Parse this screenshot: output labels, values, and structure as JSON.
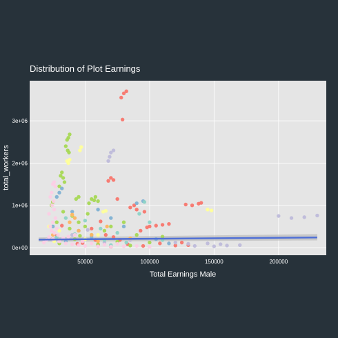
{
  "chart_data": {
    "type": "scatter",
    "title": "Distribution of Plot Earnings",
    "xlabel": "Total Earnings Male",
    "ylabel": "total_workers",
    "xlim": [
      7000,
      237000
    ],
    "ylim": [
      -180000,
      3950000
    ],
    "x_ticks": [
      {
        "value": 50000,
        "label": "50000"
      },
      {
        "value": 100000,
        "label": "100000"
      },
      {
        "value": 150000,
        "label": "150000"
      },
      {
        "value": 200000,
        "label": "200000"
      }
    ],
    "y_ticks": [
      {
        "value": 0,
        "label": "0e+00"
      },
      {
        "value": 1000000,
        "label": "1e+06"
      },
      {
        "value": 2000000,
        "label": "2e+06"
      },
      {
        "value": 3000000,
        "label": "3e+06"
      }
    ],
    "grid": true,
    "background": "#e5e5e5",
    "gridline_color": "#ffffff",
    "trend_line": {
      "type": "linear",
      "x": [
        14000,
        230000
      ],
      "y": [
        190000,
        240000
      ],
      "ci_low": [
        140000,
        170000
      ],
      "ci_high": [
        240000,
        320000
      ],
      "color": "#4f6fd6",
      "band_color": "#bcbcbc"
    },
    "series": [
      {
        "color": "#f8766d",
        "points": [
          [
            82000,
            3700000
          ],
          [
            80000,
            3650000
          ],
          [
            78000,
            3550000
          ],
          [
            79000,
            3030000
          ],
          [
            70000,
            1650000
          ],
          [
            72000,
            1600000
          ],
          [
            68000,
            1580000
          ],
          [
            75000,
            1150000
          ],
          [
            88000,
            1000000
          ],
          [
            85000,
            950000
          ],
          [
            90000,
            900000
          ],
          [
            96000,
            850000
          ],
          [
            128000,
            1020000
          ],
          [
            133000,
            1000000
          ],
          [
            140000,
            1060000
          ],
          [
            138000,
            1040000
          ],
          [
            105000,
            520000
          ],
          [
            100000,
            500000
          ],
          [
            93000,
            400000
          ],
          [
            98000,
            480000
          ],
          [
            110000,
            540000
          ],
          [
            115000,
            560000
          ],
          [
            62000,
            620000
          ],
          [
            55000,
            450000
          ],
          [
            66000,
            300000
          ],
          [
            72000,
            250000
          ],
          [
            58000,
            180000
          ],
          [
            48000,
            110000
          ],
          [
            44000,
            90000
          ],
          [
            77000,
            180000
          ],
          [
            83000,
            80000
          ],
          [
            125000,
            120000
          ],
          [
            130000,
            60000
          ],
          [
            95000,
            40000
          ],
          [
            60000,
            60000
          ],
          [
            70000,
            20000
          ],
          [
            28000,
            280000
          ],
          [
            32000,
            520000
          ],
          [
            108000,
            100000
          ],
          [
            120000,
            50000
          ]
        ]
      },
      {
        "color": "#a6d854",
        "points": [
          [
            38000,
            2680000
          ],
          [
            37000,
            2600000
          ],
          [
            36000,
            2550000
          ],
          [
            35000,
            2400000
          ],
          [
            36500,
            2300000
          ],
          [
            37500,
            2250000
          ],
          [
            32000,
            1780000
          ],
          [
            31000,
            1700000
          ],
          [
            33000,
            1650000
          ],
          [
            34000,
            1550000
          ],
          [
            30000,
            1450000
          ],
          [
            45000,
            1200000
          ],
          [
            43000,
            1150000
          ],
          [
            58000,
            1200000
          ],
          [
            55000,
            1150000
          ],
          [
            57000,
            1120000
          ],
          [
            60000,
            1100000
          ],
          [
            53000,
            1050000
          ],
          [
            24000,
            1000000
          ],
          [
            25000,
            1080000
          ],
          [
            33000,
            850000
          ],
          [
            40000,
            750000
          ],
          [
            45000,
            600000
          ],
          [
            50000,
            500000
          ],
          [
            46000,
            280000
          ],
          [
            55000,
            300000
          ],
          [
            65000,
            400000
          ],
          [
            70000,
            500000
          ],
          [
            80000,
            600000
          ],
          [
            100000,
            120000
          ],
          [
            110000,
            260000
          ],
          [
            38000,
            450000
          ],
          [
            52000,
            800000
          ],
          [
            28000,
            600000
          ],
          [
            60000,
            80000
          ],
          [
            30000,
            100000
          ],
          [
            42000,
            200000
          ],
          [
            75000,
            140000
          ],
          [
            90000,
            300000
          ],
          [
            85000,
            50000
          ]
        ]
      },
      {
        "color": "#ffff99",
        "points": [
          [
            47000,
            2380000
          ],
          [
            46000,
            2300000
          ],
          [
            36000,
            2050000
          ],
          [
            38000,
            2080000
          ],
          [
            37000,
            2000000
          ],
          [
            64000,
            850000
          ],
          [
            66000,
            870000
          ],
          [
            40000,
            780000
          ],
          [
            22000,
            500000
          ],
          [
            30000,
            400000
          ],
          [
            60000,
            300000
          ],
          [
            145000,
            900000
          ],
          [
            148000,
            880000
          ],
          [
            50000,
            200000
          ],
          [
            26000,
            150000
          ]
        ]
      },
      {
        "color": "#bebada",
        "points": [
          [
            72000,
            2300000
          ],
          [
            70000,
            2250000
          ],
          [
            69000,
            2150000
          ],
          [
            68000,
            2050000
          ],
          [
            200000,
            750000
          ],
          [
            210000,
            700000
          ],
          [
            220000,
            720000
          ],
          [
            230000,
            760000
          ],
          [
            170000,
            60000
          ],
          [
            160000,
            50000
          ],
          [
            155000,
            80000
          ],
          [
            135000,
            40000
          ],
          [
            150000,
            30000
          ],
          [
            145000,
            100000
          ],
          [
            120000,
            120000
          ],
          [
            85000,
            180000
          ],
          [
            65000,
            120000
          ],
          [
            40000,
            300000
          ],
          [
            52000,
            420000
          ],
          [
            130000,
            90000
          ]
        ]
      },
      {
        "color": "#80b1d3",
        "points": [
          [
            32000,
            1400000
          ],
          [
            30000,
            1300000
          ],
          [
            28000,
            1200000
          ],
          [
            60000,
            900000
          ],
          [
            90000,
            1050000
          ],
          [
            95000,
            1100000
          ],
          [
            80000,
            500000
          ],
          [
            70000,
            700000
          ],
          [
            45000,
            400000
          ],
          [
            25000,
            500000
          ],
          [
            40000,
            850000
          ],
          [
            105000,
            200000
          ],
          [
            115000,
            100000
          ],
          [
            55000,
            250000
          ],
          [
            35000,
            150000
          ]
        ]
      },
      {
        "color": "#8dd3c7",
        "points": [
          [
            96000,
            1080000
          ],
          [
            92000,
            800000
          ],
          [
            75000,
            350000
          ],
          [
            65000,
            180000
          ],
          [
            50000,
            640000
          ],
          [
            42000,
            320000
          ],
          [
            62000,
            450000
          ],
          [
            82000,
            120000
          ],
          [
            110000,
            180000
          ],
          [
            35000,
            700000
          ],
          [
            28000,
            250000
          ],
          [
            70000,
            60000
          ],
          [
            100000,
            600000
          ]
        ]
      },
      {
        "color": "#fdb462",
        "points": [
          [
            40000,
            780000
          ],
          [
            42000,
            700000
          ],
          [
            38000,
            600000
          ],
          [
            45000,
            400000
          ],
          [
            55000,
            300000
          ],
          [
            60000,
            150000
          ],
          [
            67000,
            500000
          ],
          [
            25000,
            300000
          ],
          [
            85000,
            220000
          ]
        ]
      },
      {
        "color": "#fccde5",
        "points": [
          [
            26000,
            1550000
          ],
          [
            25000,
            1500000
          ],
          [
            27000,
            1450000
          ],
          [
            24000,
            1300000
          ],
          [
            23000,
            1200000
          ],
          [
            25500,
            1100000
          ],
          [
            24500,
            1000000
          ],
          [
            26000,
            900000
          ],
          [
            22000,
            800000
          ],
          [
            27000,
            700000
          ],
          [
            25000,
            600000
          ],
          [
            23000,
            500000
          ],
          [
            28000,
            450000
          ],
          [
            24000,
            400000
          ],
          [
            26000,
            350000
          ],
          [
            29000,
            300000
          ],
          [
            22000,
            250000
          ],
          [
            25000,
            200000
          ],
          [
            30000,
            150000
          ],
          [
            35000,
            100000
          ],
          [
            40000,
            80000
          ],
          [
            45000,
            60000
          ],
          [
            50000,
            40000
          ],
          [
            60000,
            30000
          ],
          [
            70000,
            20000
          ],
          [
            80000,
            30000
          ],
          [
            90000,
            40000
          ],
          [
            100000,
            20000
          ],
          [
            20000,
            180000
          ],
          [
            18000,
            120000
          ],
          [
            33000,
            220000
          ],
          [
            37000,
            260000
          ],
          [
            42000,
            300000
          ],
          [
            48000,
            150000
          ],
          [
            55000,
            100000
          ],
          [
            65000,
            70000
          ],
          [
            75000,
            90000
          ]
        ]
      }
    ]
  }
}
